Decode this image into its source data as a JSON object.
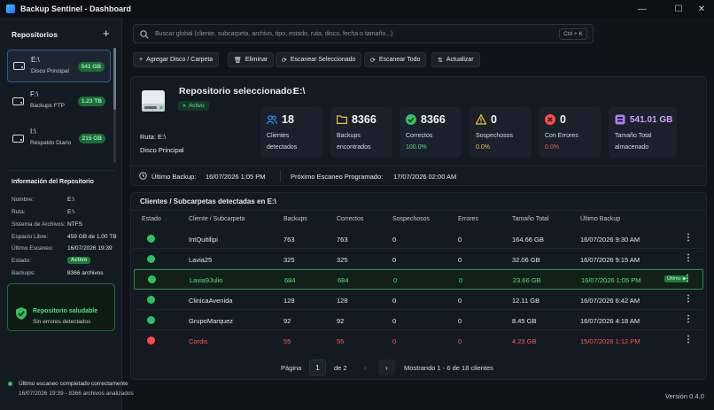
{
  "window": {
    "title": "Backup Sentinel - Dashboard"
  },
  "sidebar": {
    "title": "Repositorios",
    "add": "+",
    "repos": [
      {
        "name": "E:\\",
        "sub": "Disco Principal",
        "size": "541 GB"
      },
      {
        "name": "F:\\",
        "sub": "Backups FTP",
        "size": "1.23 TB"
      },
      {
        "name": "I:\\",
        "sub": "Respaldo Diario",
        "size": "215 GB"
      }
    ],
    "info_title": "Información del Repositorio",
    "info": [
      {
        "k": "Nombre:",
        "v": "E:\\"
      },
      {
        "k": "Ruta:",
        "v": "E:\\"
      },
      {
        "k": "Sistema de Archivos:",
        "v": "NTFS"
      },
      {
        "k": "Espacio Libre:",
        "v": "459 GB de 1.00 TB"
      },
      {
        "k": "Último Escaneo:",
        "v": "16/07/2026 19:39"
      },
      {
        "k": "Estado:",
        "v": "Activo"
      },
      {
        "k": "Backups:",
        "v": "8366 archivos"
      }
    ],
    "health_title": "Repositorio saludable",
    "health_sub": "Sin errores detectados",
    "footer1": "Último escaneo completado correctamente",
    "footer2": "16/07/2026 19:39 - 8366 archivos analizados"
  },
  "search": {
    "placeholder": "Buscar global (cliente, subcarpeta, archivo, tipo, estado, ruta, disco, fecha o tamaño...)",
    "shortcut": "Ctrl + K"
  },
  "toolbar": {
    "add": "Agregar Disco / Carpeta",
    "delete": "Eliminar",
    "scan_sel": "Escanear Seleccionado",
    "scan_all": "Escanear Todo",
    "update": "Actualizar"
  },
  "selected": {
    "label": "Repositorio seleccionado:",
    "name": "E:\\",
    "status": "Activo",
    "ruta": "Ruta:  E:\\",
    "desc": "Disco Principal",
    "last_backup_label": "Último Backup:",
    "last_backup": "16/07/2026 1:05 PM",
    "next_scan_label": "Próximo Escaneo Programado:",
    "next_scan": "17/07/2026 02:00 AM"
  },
  "stats": [
    {
      "num": "18",
      "l1": "Clientes",
      "l2": "detectados",
      "color": "#3b8bff"
    },
    {
      "num": "8366",
      "l1": "Backups",
      "l2": "encontrados",
      "color": "#f2c230"
    },
    {
      "num": "8366",
      "l1": "Correctos",
      "l2": "100.0%",
      "color": "#2fc25b"
    },
    {
      "num": "0",
      "l1": "Sospechosos",
      "l2": "0.0%",
      "color": "#f2c230"
    },
    {
      "num": "0",
      "l1": "Con Errores",
      "l2": "0.0%",
      "color": "#ff4a4a"
    },
    {
      "num": "541.01 GB",
      "l1": "Tamaño Total",
      "l2": "almacenado",
      "color": "#b07aff"
    }
  ],
  "table": {
    "title": "Clientes / Subcarpetas detectadas en E:\\",
    "headers": [
      "Estado",
      "Cliente / Subcarpeta",
      "Backups",
      "Correctos",
      "Sospechosos",
      "Errores",
      "Tamaño Total",
      "Último Backup"
    ],
    "rows": [
      {
        "name": "IntQuitilipi",
        "backups": "763",
        "ok": "763",
        "sus": "0",
        "err": "0",
        "size": "164.66 GB",
        "last": "16/07/2026 9:30 AM"
      },
      {
        "name": "Lavia25",
        "backups": "325",
        "ok": "325",
        "sus": "0",
        "err": "0",
        "size": "32.06 GB",
        "last": "16/07/2026 9:15 AM"
      },
      {
        "name": "Lavia9Julio",
        "backups": "684",
        "ok": "684",
        "sus": "0",
        "err": "0",
        "size": "23.66 GB",
        "last": "16/07/2026 1:05 PM",
        "tag": "Último"
      },
      {
        "name": "ClinicaAvenida",
        "backups": "128",
        "ok": "128",
        "sus": "0",
        "err": "0",
        "size": "12.11 GB",
        "last": "16/07/2026 6:42 AM"
      },
      {
        "name": "GrupoMarquez",
        "backups": "92",
        "ok": "92",
        "sus": "0",
        "err": "0",
        "size": "8.45 GB",
        "last": "16/07/2026 4:18 AM"
      },
      {
        "name": "Cordis",
        "backups": "55",
        "ok": "55",
        "sus": "0",
        "err": "0",
        "size": "4.23 GB",
        "last": "15/07/2026 1:12 PM"
      }
    ]
  },
  "pagination": {
    "label": "Página",
    "page": "1",
    "of": "de 2",
    "showing": "Mostrando 1 - 6 de 18 clientes"
  },
  "version": "Versión 0.4.0"
}
